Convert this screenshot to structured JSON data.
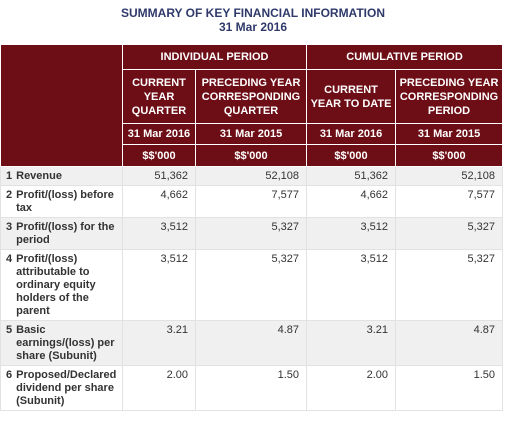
{
  "title": {
    "line1": "SUMMARY OF KEY FINANCIAL INFORMATION",
    "line2": "31 Mar 2016"
  },
  "header": {
    "groups": [
      "INDIVIDUAL PERIOD",
      "CUMULATIVE PERIOD"
    ],
    "columns": [
      "CURRENT YEAR QUARTER",
      "PRECEDING YEAR CORRESPONDING QUARTER",
      "CURRENT YEAR TO DATE",
      "PRECEDING YEAR CORRESPONDING PERIOD"
    ],
    "dates": [
      "31 Mar 2016",
      "31 Mar 2015",
      "31 Mar 2016",
      "31 Mar 2015"
    ],
    "units": [
      "$$'000",
      "$$'000",
      "$$'000",
      "$$'000"
    ]
  },
  "rows": [
    {
      "no": "1",
      "label": "Revenue",
      "values": [
        "51,362",
        "52,108",
        "51,362",
        "52,108"
      ]
    },
    {
      "no": "2",
      "label": "Profit/(loss) before tax",
      "values": [
        "4,662",
        "7,577",
        "4,662",
        "7,577"
      ]
    },
    {
      "no": "3",
      "label": "Profit/(loss) for the period",
      "values": [
        "3,512",
        "5,327",
        "3,512",
        "5,327"
      ]
    },
    {
      "no": "4",
      "label": "Profit/(loss) attributable to ordinary equity holders of the parent",
      "values": [
        "3,512",
        "5,327",
        "3,512",
        "5,327"
      ]
    },
    {
      "no": "5",
      "label": "Basic earnings/(loss) per share (Subunit)",
      "values": [
        "3.21",
        "4.87",
        "3.21",
        "4.87"
      ]
    },
    {
      "no": "6",
      "label": "Proposed/Declared dividend per share (Subunit)",
      "values": [
        "2.00",
        "1.50",
        "2.00",
        "1.50"
      ]
    }
  ],
  "colors": {
    "header_bg": "#6d0e16",
    "title": "#2f3a6b"
  }
}
